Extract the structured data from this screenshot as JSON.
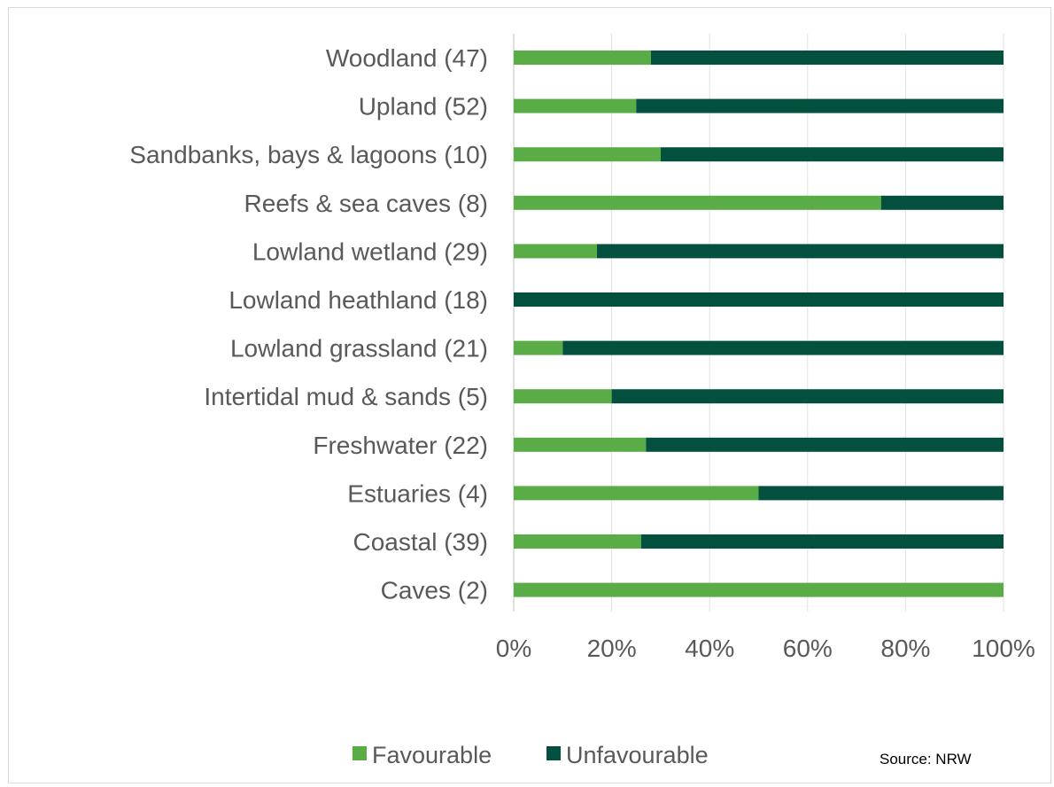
{
  "chart_data": {
    "type": "bar",
    "orientation": "horizontal",
    "stacked": "percent",
    "categories": [
      "Woodland (47)",
      "Upland (52)",
      "Sandbanks, bays & lagoons (10)",
      "Reefs & sea caves (8)",
      "Lowland wetland (29)",
      "Lowland heathland (18)",
      "Lowland grassland (21)",
      "Intertidal mud & sands (5)",
      "Freshwater (22)",
      "Estuaries (4)",
      "Coastal (39)",
      "Caves (2)"
    ],
    "series": [
      {
        "name": "Favourable",
        "color": "#5aad46",
        "values": [
          28,
          25,
          30,
          75,
          17,
          0,
          10,
          20,
          27,
          50,
          26,
          100
        ]
      },
      {
        "name": "Unfavourable",
        "color": "#04503f",
        "values": [
          72,
          75,
          70,
          25,
          83,
          100,
          90,
          80,
          73,
          50,
          74,
          0
        ]
      }
    ],
    "x_ticks": [
      "0%",
      "20%",
      "40%",
      "60%",
      "80%",
      "100%"
    ],
    "xlim": [
      0,
      100
    ],
    "grid": "vertical",
    "legend": "bottom",
    "source": "Source:  NRW"
  }
}
